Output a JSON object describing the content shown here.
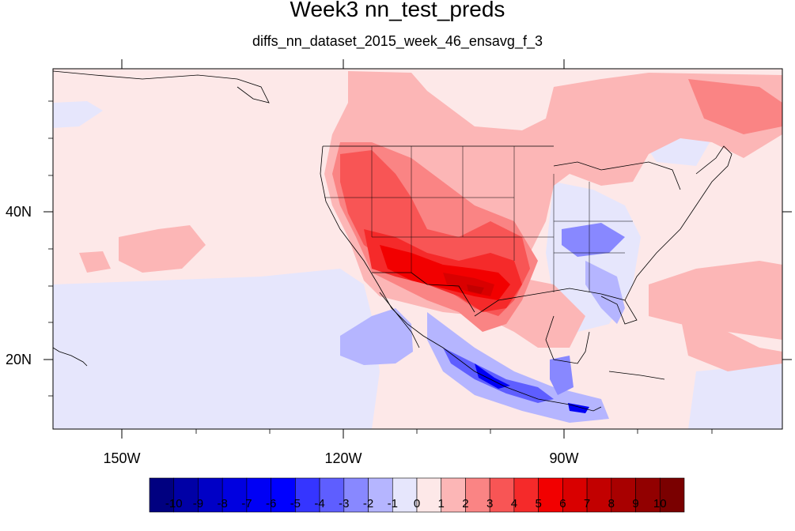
{
  "title": "Week3 nn_test_preds",
  "subtitle": "diffs_nn_dataset_2015_week_46_ensavg_f_3",
  "lat_labels": [
    "40N",
    "20N"
  ],
  "lon_labels": [
    "150W",
    "120W",
    "90W"
  ],
  "colorbar": {
    "labels": [
      "-10",
      "-9",
      "-8",
      "-7",
      "-6",
      "-5",
      "-4",
      "-3",
      "-2",
      "-1",
      "0",
      "1",
      "2",
      "3",
      "4",
      "5",
      "6",
      "7",
      "8",
      "9",
      "10"
    ],
    "colors": [
      "#000080",
      "#0000a6",
      "#0000c6",
      "#0000e0",
      "#0000f5",
      "#0000ff",
      "#3535ff",
      "#5e5eff",
      "#8888ff",
      "#b5b5ff",
      "#e6e6fc",
      "#fde8e8",
      "#fcb6b6",
      "#fa8484",
      "#f85555",
      "#f52a2a",
      "#f20000",
      "#d90000",
      "#c20000",
      "#a80000",
      "#920000",
      "#7a0000"
    ]
  },
  "map_colors": {
    "background": "#fde8e8",
    "light_blue": "#e6e6fc",
    "blue_2": "#b5b5ff",
    "blue_3": "#8888ff",
    "blue_4": "#5e5eff",
    "blue_6": "#0000f5",
    "pink_1": "#fcb6b6",
    "pink_2": "#fa8484",
    "red_3": "#f85555",
    "red_4": "#f52a2a",
    "red_5": "#f20000",
    "red_6": "#d90000",
    "red_7": "#c20000"
  }
}
